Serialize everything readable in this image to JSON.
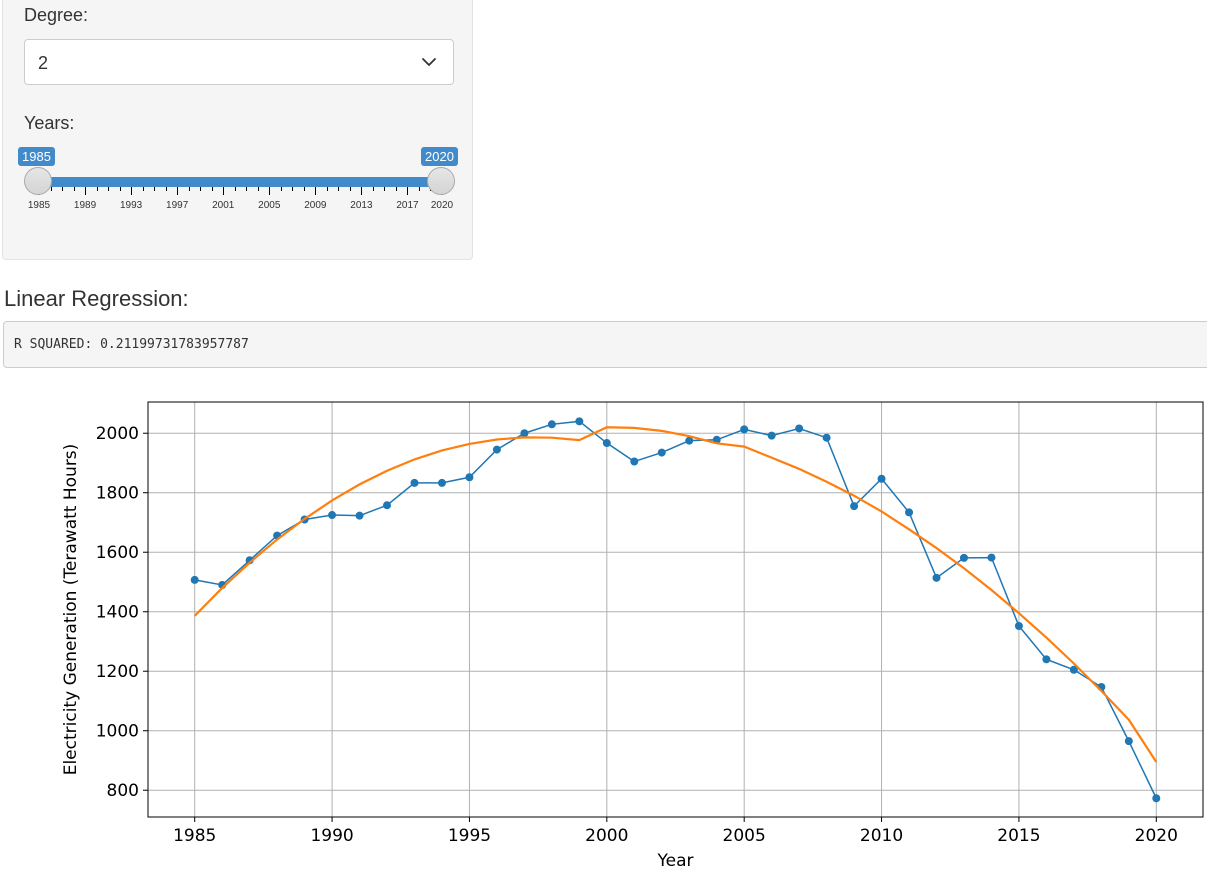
{
  "controls": {
    "degree_label": "Degree:",
    "degree_value": "2",
    "years_label": "Years:",
    "years_min": 1985,
    "years_max": 2020,
    "years_from_label": "1985",
    "years_to_label": "2020",
    "tick_labels": [
      "1985",
      "1989",
      "1993",
      "1997",
      "2001",
      "2005",
      "2009",
      "2013",
      "2017",
      "2020"
    ]
  },
  "output": {
    "heading": "Linear Regression:",
    "text": "R SQUARED: 0.21199731783957787"
  },
  "colors": {
    "accent": "#428bca",
    "series_observed": "#1f77b4",
    "series_fit": "#ff7f0e"
  },
  "chart_data": {
    "type": "line",
    "title": "",
    "xlabel": "Year",
    "ylabel": "Electricity Generation (Terawatt Hours)",
    "xlim": [
      1983.3,
      2021.7
    ],
    "ylim": [
      710,
      2105
    ],
    "xticks": [
      1985,
      1990,
      1995,
      2000,
      2005,
      2010,
      2015,
      2020
    ],
    "yticks": [
      800,
      1000,
      1200,
      1400,
      1600,
      1800,
      2000
    ],
    "grid": true,
    "series": [
      {
        "type": "line-markers",
        "x": [
          1985,
          1986,
          1987,
          1988,
          1989,
          1990,
          1991,
          1992,
          1993,
          1994,
          1995,
          1996,
          1997,
          1998,
          1999,
          2000,
          2001,
          2002,
          2003,
          2004,
          2005,
          2006,
          2007,
          2008,
          2009,
          2010,
          2011,
          2012,
          2013,
          2014,
          2015,
          2016,
          2017,
          2018,
          2019,
          2020
        ],
        "y": [
          1507,
          1490,
          1573,
          1656,
          1710,
          1725,
          1723,
          1758,
          1833,
          1833,
          1852,
          1945,
          2000,
          2030,
          2040,
          1967,
          1905,
          1935,
          1975,
          1978,
          2013,
          1992,
          2016,
          1985,
          1755,
          1847,
          1734,
          1514,
          1581,
          1582,
          1352,
          1240,
          1205,
          1147,
          965,
          773
        ]
      },
      {
        "type": "line",
        "x": [
          1985,
          1986,
          1987,
          1988,
          1989,
          1990,
          1991,
          1992,
          1993,
          1994,
          1995,
          1996,
          1997,
          1998,
          1999,
          2000,
          2001,
          2002,
          2003,
          2004,
          2005,
          2006,
          2007,
          2008,
          2009,
          2010,
          2011,
          2012,
          2013,
          2014,
          2015,
          2016,
          2017,
          2018,
          2019,
          2020
        ],
        "y": [
          1386,
          1480,
          1565,
          1643,
          1712,
          1774,
          1828,
          1874,
          1912,
          1942,
          1964,
          1979,
          1986,
          1985,
          1977,
          2020,
          2018,
          2008,
          1990,
          1966,
          1955,
          1918,
          1880,
          1837,
          1790,
          1737,
          1677,
          1614,
          1546,
          1473,
          1395,
          1313,
          1226,
          1134,
          1037,
          895
        ]
      }
    ]
  }
}
